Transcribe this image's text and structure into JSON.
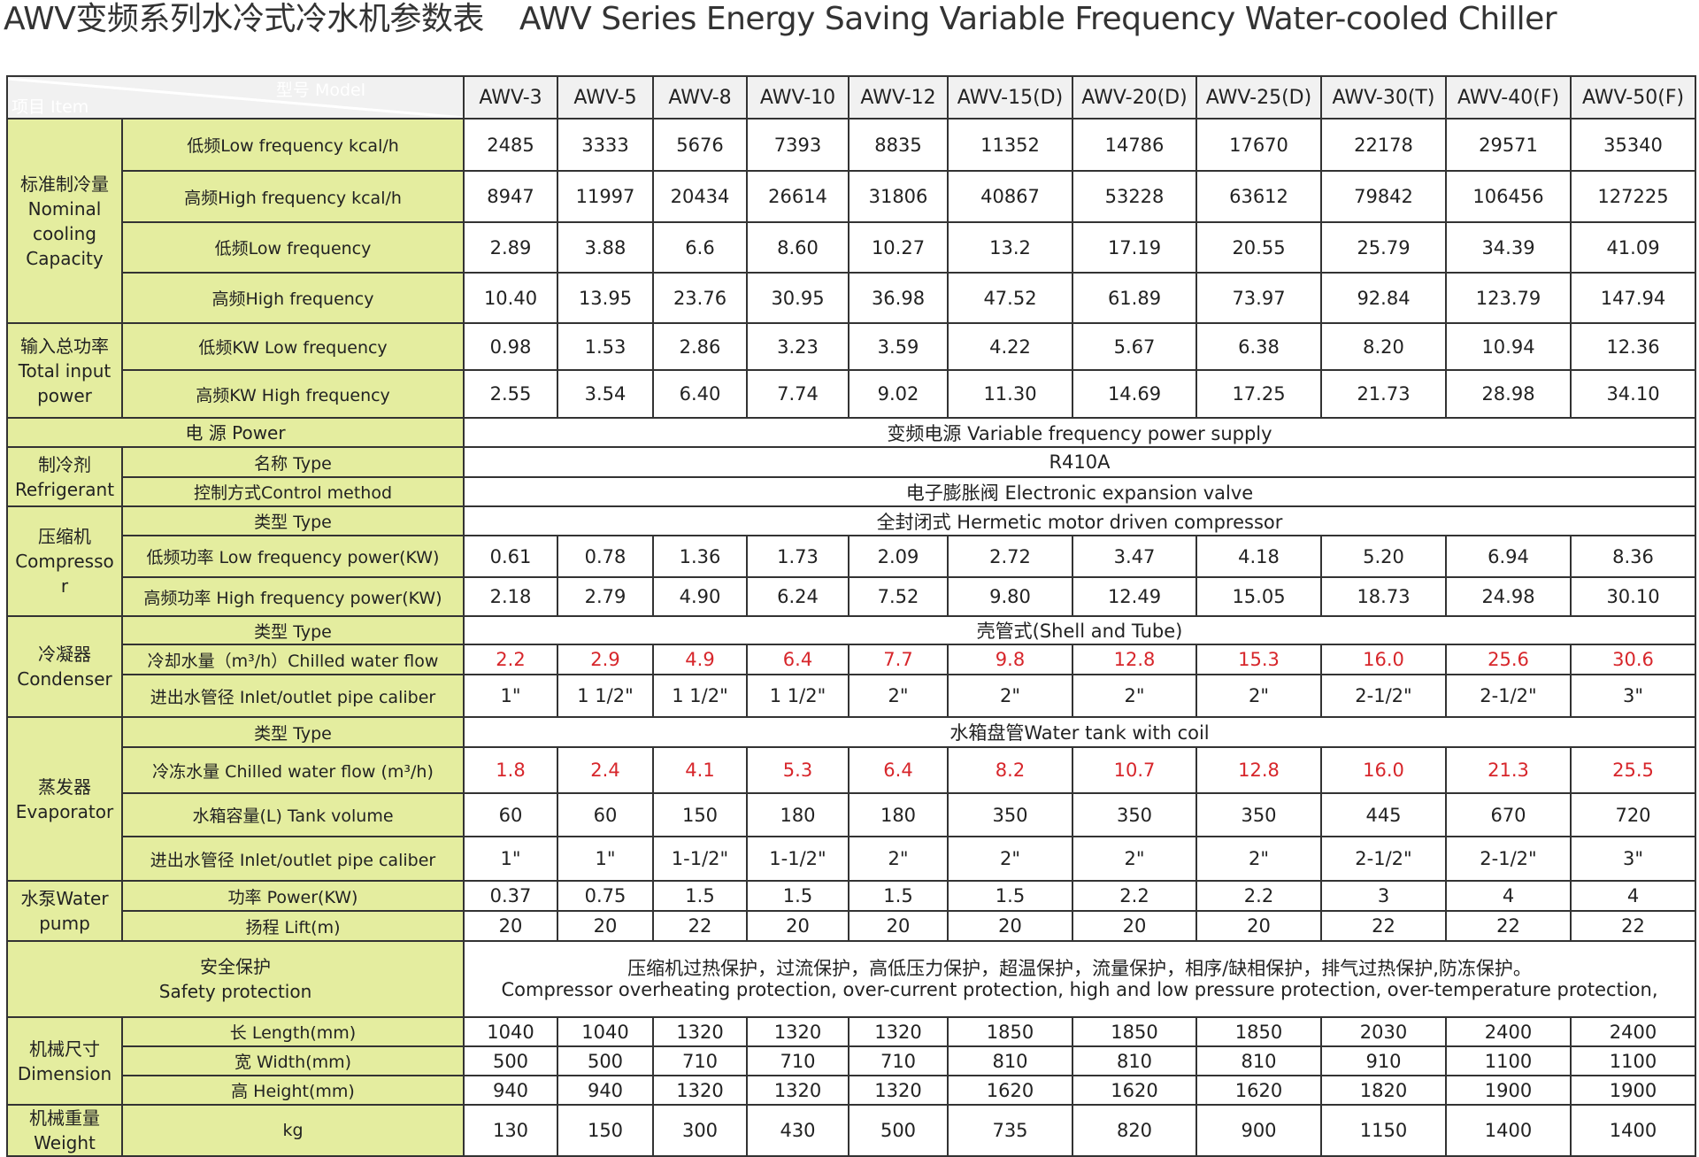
{
  "title": {
    "cn": "AWV变频系列水冷式冷水机参数表",
    "en": "AWV Series Energy Saving Variable Frequency Water-cooled Chiller"
  },
  "header": {
    "model_label": "型号  Model",
    "item_label": "项目  Item",
    "models": [
      "AWV-3",
      "AWV-5",
      "AWV-8",
      "AWV-10",
      "AWV-12",
      "AWV-15(D)",
      "AWV-20(D)",
      "AWV-25(D)",
      "AWV-30(T)",
      "AWV-40(F)",
      "AWV-50(F)"
    ]
  },
  "colors": {
    "label_bg": "#e4ed9f",
    "header_bg": "#4a4a4a",
    "highlight": "#d7262b"
  },
  "groups": [
    {
      "label": "标准制冷量\nNominal\ncooling\nCapacity",
      "rows": [
        {
          "label": "低频Low frequency  kcal/h",
          "values": [
            "2485",
            "3333",
            "5676",
            "7393",
            "8835",
            "11352",
            "14786",
            "17670",
            "22178",
            "29571",
            "35340"
          ]
        },
        {
          "label": "高频High frequency kcal/h",
          "values": [
            "8947",
            "11997",
            "20434",
            "26614",
            "31806",
            "40867",
            "53228",
            "63612",
            "79842",
            "106456",
            "127225"
          ]
        },
        {
          "label": "低频Low frequency",
          "values": [
            "2.89",
            "3.88",
            "6.6",
            "8.60",
            "10.27",
            "13.2",
            "17.19",
            "20.55",
            "25.79",
            "34.39",
            "41.09"
          ]
        },
        {
          "label": "高频High frequency",
          "values": [
            "10.40",
            "13.95",
            "23.76",
            "30.95",
            "36.98",
            "47.52",
            "61.89",
            "73.97",
            "92.84",
            "123.79",
            "147.94"
          ]
        }
      ]
    },
    {
      "label": "输入总功率\nTotal input\npower",
      "rows": [
        {
          "label": "低频KW  Low frequency",
          "values": [
            "0.98",
            "1.53",
            "2.86",
            "3.23",
            "3.59",
            "4.22",
            "5.67",
            "6.38",
            "8.20",
            "10.94",
            "12.36"
          ]
        },
        {
          "label": "高频KW   High frequency",
          "values": [
            "2.55",
            "3.54",
            "6.40",
            "7.74",
            "9.02",
            "11.30",
            "14.69",
            "17.25",
            "21.73",
            "28.98",
            "34.10"
          ]
        }
      ]
    },
    {
      "label": "电     源  Power",
      "full": true,
      "rows": [
        {
          "span": "变频电源 Variable frequency power supply"
        }
      ]
    },
    {
      "label": "制冷剂\nRefrigerant",
      "rows": [
        {
          "label": "名称  Type",
          "span": "R410A"
        },
        {
          "label": "控制方式Control method",
          "span": "电子膨胀阀 Electronic expansion valve"
        }
      ]
    },
    {
      "label": "压缩机\nCompresso\nr",
      "rows": [
        {
          "label": "类型 Type",
          "span": "全封闭式 Hermetic motor driven compressor"
        },
        {
          "label": "低频功率  Low frequency power(KW)",
          "values": [
            "0.61",
            "0.78",
            "1.36",
            "1.73",
            "2.09",
            "2.72",
            "3.47",
            "4.18",
            "5.20",
            "6.94",
            "8.36"
          ]
        },
        {
          "label": "高频功率 High frequency power(KW)",
          "values": [
            "2.18",
            "2.79",
            "4.90",
            "6.24",
            "7.52",
            "9.80",
            "12.49",
            "15.05",
            "18.73",
            "24.98",
            "30.10"
          ]
        }
      ]
    },
    {
      "label": "冷凝器\nCondenser",
      "rows": [
        {
          "label": "类型 Type",
          "span": "壳管式(Shell and Tube)"
        },
        {
          "label": "冷却水量（m³/h）Chilled water flow",
          "red": true,
          "values": [
            "2.2",
            "2.9",
            "4.9",
            "6.4",
            "7.7",
            "9.8",
            "12.8",
            "15.3",
            "16.0",
            "25.6",
            "30.6"
          ]
        },
        {
          "label": "进出水管径 Inlet/outlet pipe caliber",
          "values": [
            "1\"",
            "1 1/2\"",
            "1 1/2\"",
            "1 1/2\"",
            "2\"",
            "2\"",
            "2\"",
            "2\"",
            "2-1/2\"",
            "2-1/2\"",
            "3\""
          ]
        }
      ]
    },
    {
      "label": "蒸发器\nEvaporator",
      "rows": [
        {
          "label": "类型 Type",
          "span": "水箱盘管Water tank with coil"
        },
        {
          "label": "冷冻水量 Chilled water flow (m³/h)",
          "red": true,
          "values": [
            "1.8",
            "2.4",
            "4.1",
            "5.3",
            "6.4",
            "8.2",
            "10.7",
            "12.8",
            "16.0",
            "21.3",
            "25.5"
          ]
        },
        {
          "label": "水箱容量(L) Tank volume",
          "values": [
            "60",
            "60",
            "150",
            "180",
            "180",
            "350",
            "350",
            "350",
            "445",
            "670",
            "720"
          ]
        },
        {
          "label": "进出水管径   Inlet/outlet pipe caliber",
          "values": [
            "1\"",
            "1\"",
            "1-1/2\"",
            "1-1/2\"",
            "2\"",
            "2\"",
            "2\"",
            "2\"",
            "2-1/2\"",
            "2-1/2\"",
            "3\""
          ]
        }
      ]
    },
    {
      "label": "水泵Water\npump",
      "rows": [
        {
          "label": "功率  Power(KW)",
          "values": [
            "0.37",
            "0.75",
            "1.5",
            "1.5",
            "1.5",
            "1.5",
            "2.2",
            "2.2",
            "3",
            "4",
            "4"
          ]
        },
        {
          "label": "扬程  Lift(m)",
          "values": [
            "20",
            "20",
            "22",
            "20",
            "20",
            "20",
            "20",
            "20",
            "22",
            "22",
            "22"
          ]
        }
      ]
    },
    {
      "label": "安全保护\nSafety protection",
      "full": true,
      "rows": [
        {
          "span": "压缩机过热保护，过流保护，高低压力保护，超温保护，流量保护，相序/缺相保护，排气过热保护,防冻保护。\nCompressor overheating protection, over-current protection, high and low pressure protection, over-temperature protection,"
        }
      ]
    },
    {
      "label": "机械尺寸\nDimension",
      "rows": [
        {
          "label": "长  Length(mm)",
          "values": [
            "1040",
            "1040",
            "1320",
            "1320",
            "1320",
            "1850",
            "1850",
            "1850",
            "2030",
            "2400",
            "2400"
          ]
        },
        {
          "label": "宽  Width(mm)",
          "values": [
            "500",
            "500",
            "710",
            "710",
            "710",
            "810",
            "810",
            "810",
            "910",
            "1100",
            "1100"
          ]
        },
        {
          "label": "高  Height(mm)",
          "values": [
            "940",
            "940",
            "1320",
            "1320",
            "1320",
            "1620",
            "1620",
            "1620",
            "1820",
            "1900",
            "1900"
          ]
        }
      ]
    },
    {
      "label": "机械重量Weight",
      "rows": [
        {
          "label": "kg",
          "values": [
            "130",
            "150",
            "300",
            "430",
            "500",
            "735",
            "820",
            "900",
            "1150",
            "1400",
            "1400"
          ]
        }
      ]
    }
  ]
}
